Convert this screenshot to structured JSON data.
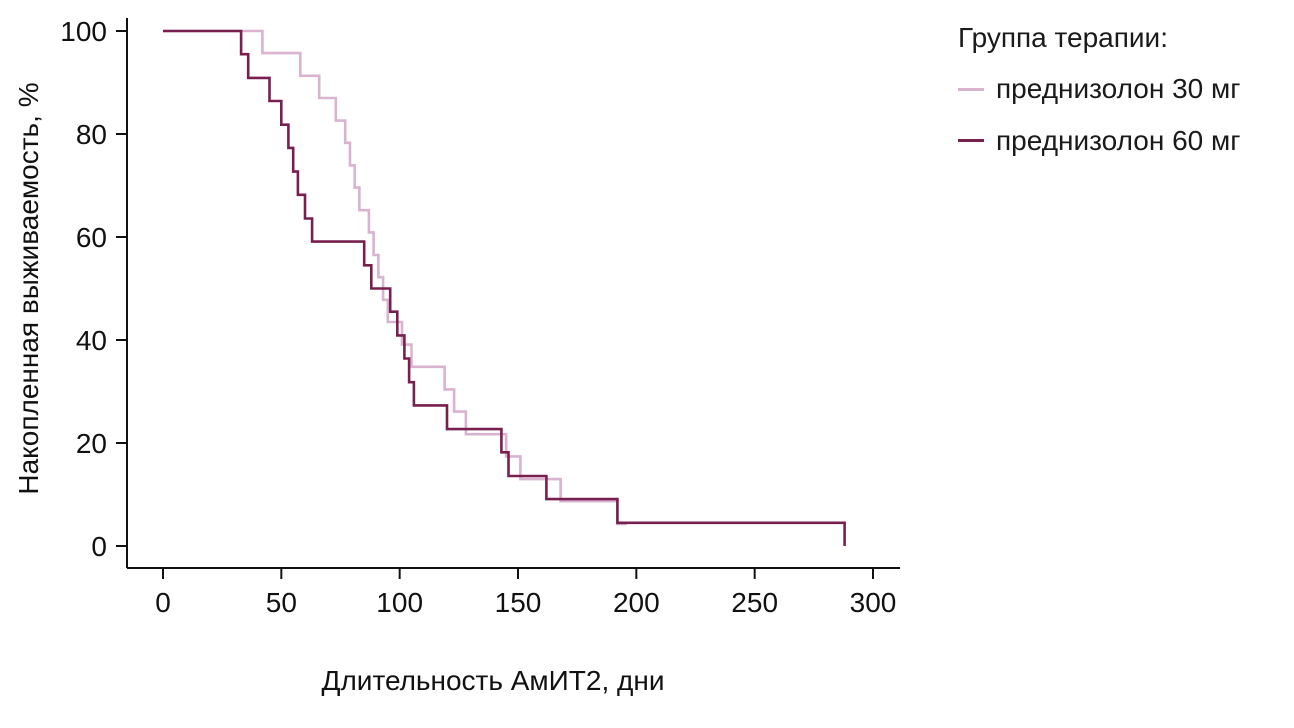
{
  "chart_data": {
    "type": "line",
    "subtype": "kaplan-meier-step",
    "title": "",
    "xlabel": "Длительность АмИТ2, дни",
    "ylabel": "Накопленная выживаемость, %",
    "x_ticks": [
      0,
      50,
      100,
      150,
      200,
      250,
      300
    ],
    "y_ticks": [
      0,
      20,
      40,
      60,
      80,
      100
    ],
    "xlim": [
      0,
      310
    ],
    "ylim": [
      0,
      100
    ],
    "grid": false,
    "legend_position": "top-right",
    "legend_title": "Группа терапии:",
    "series": [
      {
        "name": "преднизолон 30 мг",
        "color": "#d9b3d0",
        "end": 196,
        "points": [
          [
            0,
            100
          ],
          [
            42,
            95.7
          ],
          [
            58,
            91.3
          ],
          [
            66,
            87.0
          ],
          [
            73,
            82.6
          ],
          [
            77,
            78.3
          ],
          [
            79,
            73.9
          ],
          [
            81,
            69.6
          ],
          [
            83,
            65.2
          ],
          [
            87,
            60.9
          ],
          [
            89,
            56.5
          ],
          [
            91,
            52.2
          ],
          [
            93,
            47.8
          ],
          [
            95,
            43.5
          ],
          [
            101,
            39.1
          ],
          [
            105,
            34.8
          ],
          [
            119,
            30.4
          ],
          [
            123,
            26.1
          ],
          [
            128,
            21.7
          ],
          [
            145,
            17.4
          ],
          [
            151,
            13.0
          ],
          [
            168,
            8.7
          ],
          [
            192,
            4.3
          ]
        ]
      },
      {
        "name": "преднизолон 60 мг",
        "color": "#772050",
        "end": 288,
        "points": [
          [
            0,
            100
          ],
          [
            33,
            95.5
          ],
          [
            36,
            90.9
          ],
          [
            45,
            86.4
          ],
          [
            50,
            81.8
          ],
          [
            53,
            77.3
          ],
          [
            55,
            72.7
          ],
          [
            57,
            68.2
          ],
          [
            60,
            63.6
          ],
          [
            63,
            59.1
          ],
          [
            85,
            54.5
          ],
          [
            88,
            50.0
          ],
          [
            96,
            45.5
          ],
          [
            99,
            40.9
          ],
          [
            102,
            36.4
          ],
          [
            104,
            31.8
          ],
          [
            106,
            27.3
          ],
          [
            120,
            22.7
          ],
          [
            143,
            18.2
          ],
          [
            146,
            13.6
          ],
          [
            162,
            9.1
          ],
          [
            192,
            4.5
          ],
          [
            288,
            0
          ]
        ]
      }
    ]
  }
}
